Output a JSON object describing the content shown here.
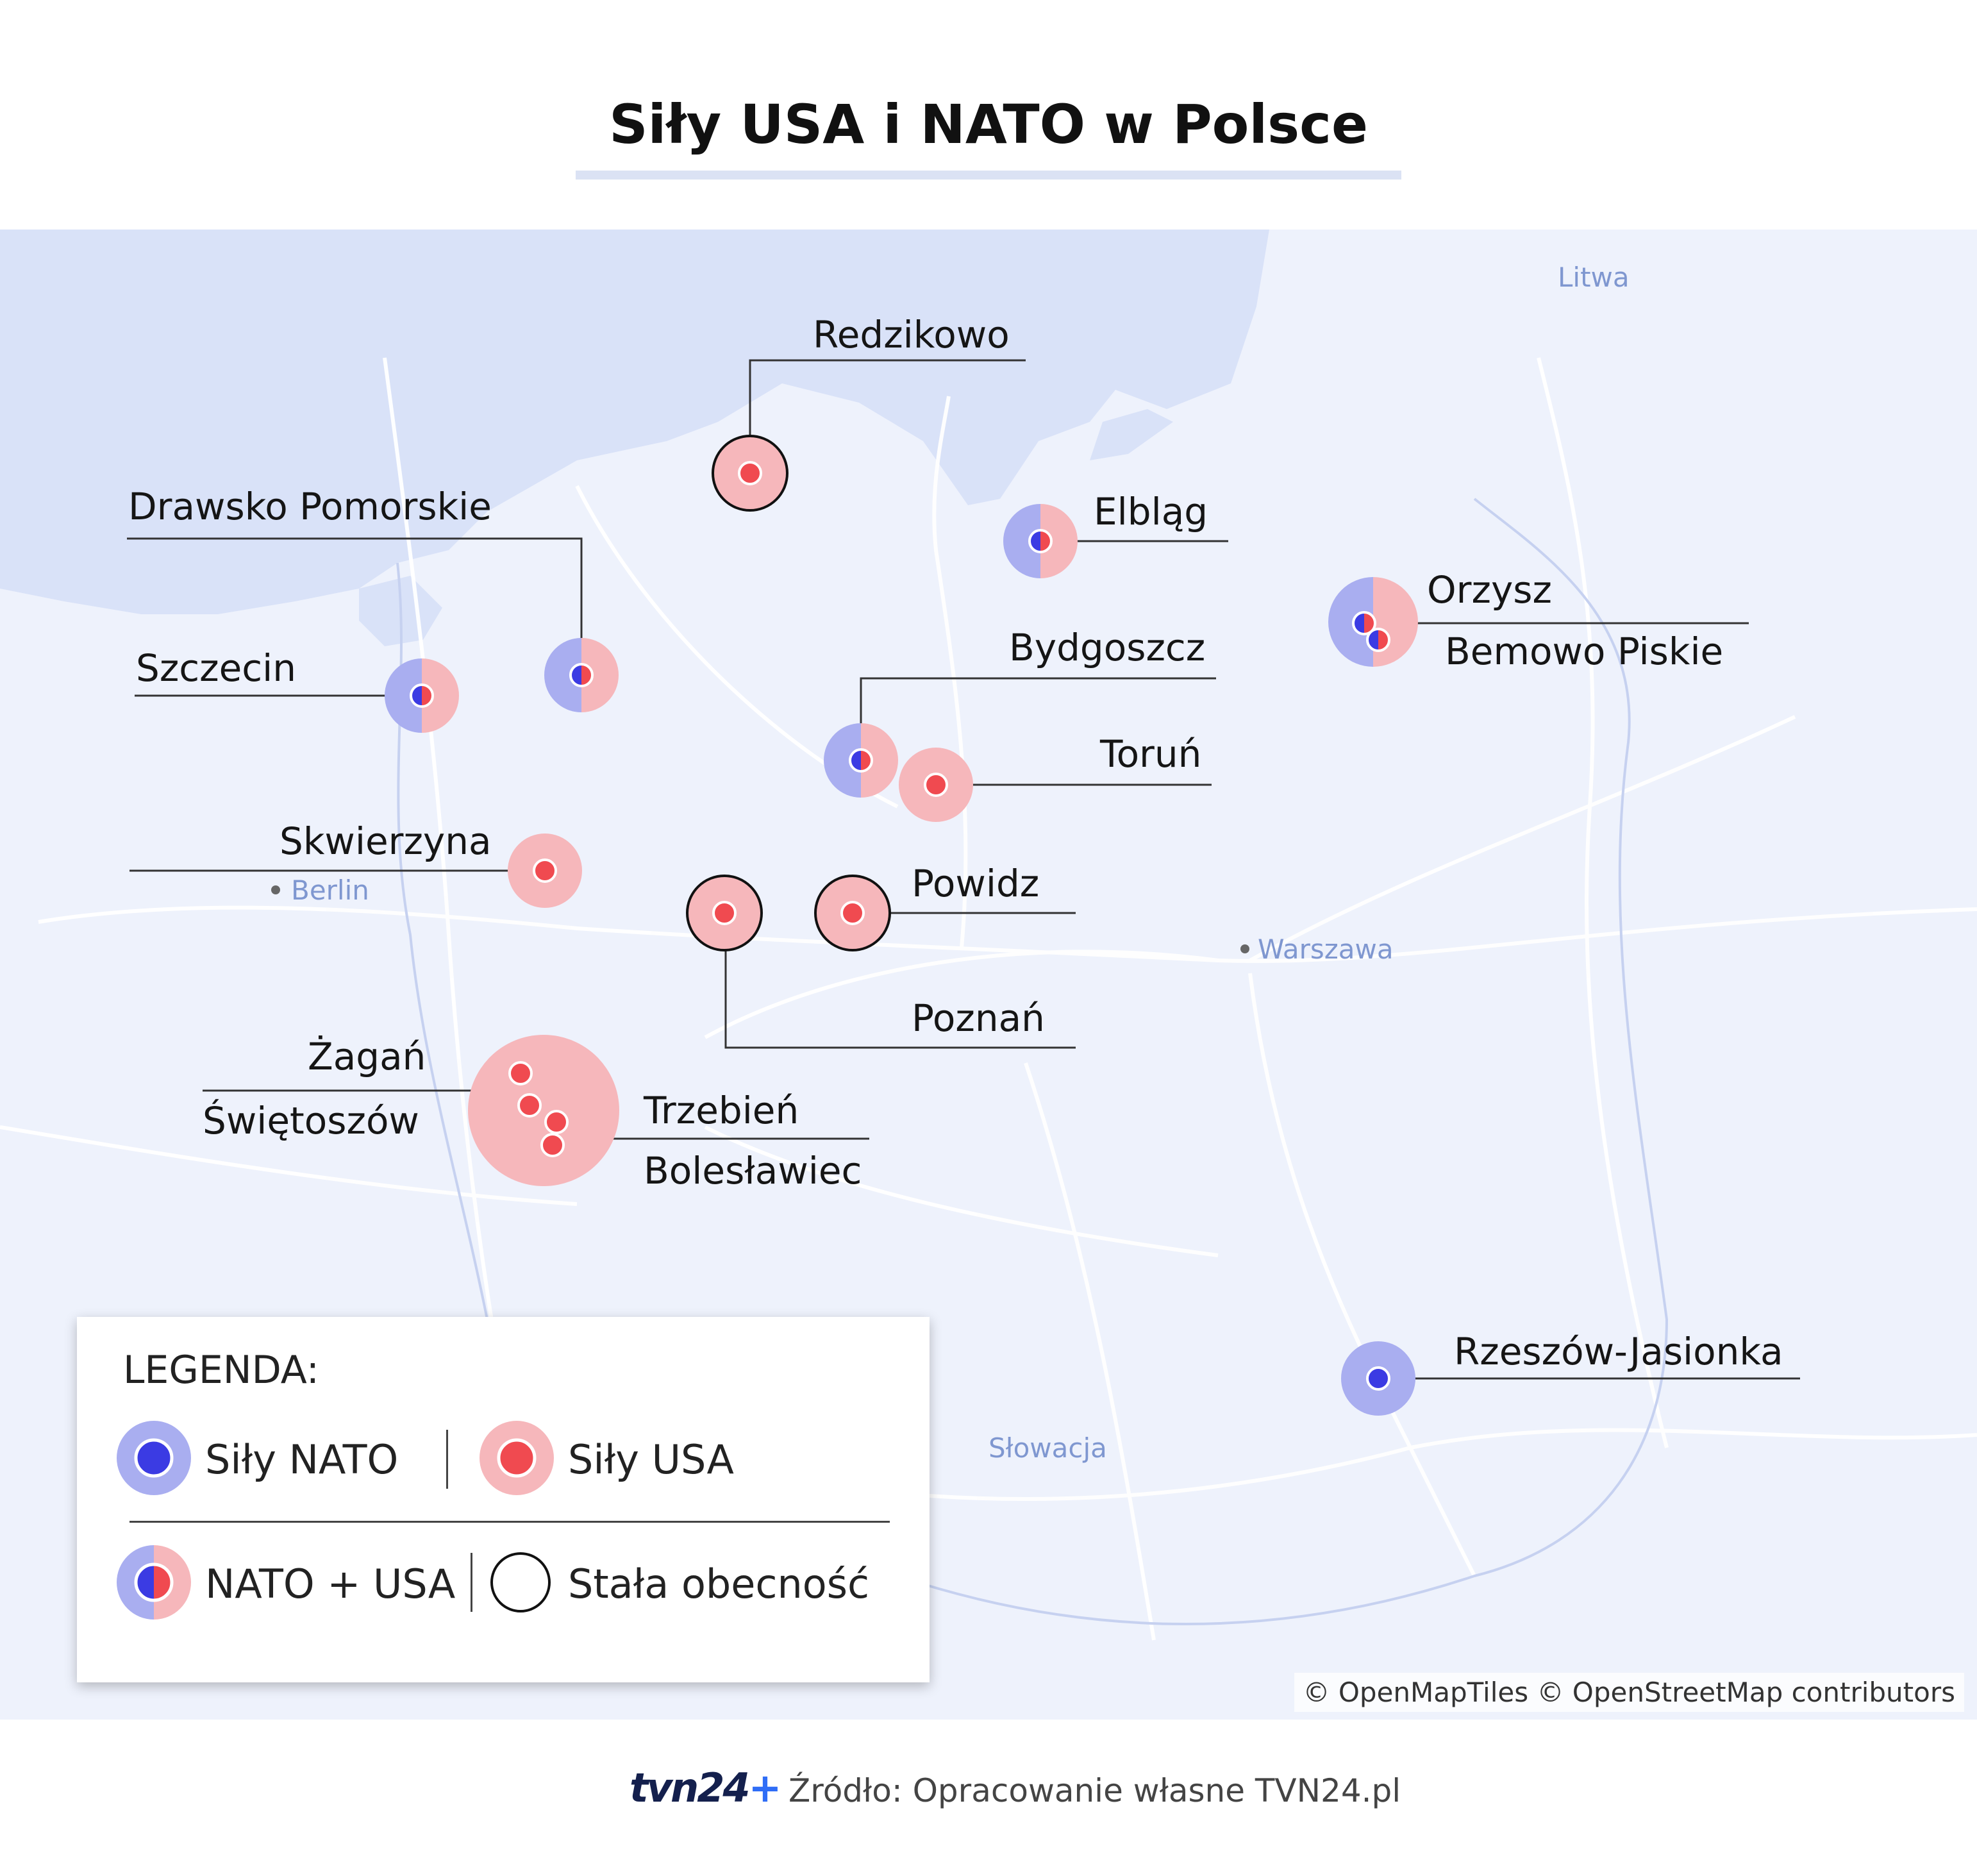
{
  "title": "Siły USA i NATO w Polsce",
  "colors": {
    "nato": "#3b3be3",
    "nato_halo": "#a9aef0",
    "usa": "#f04a50",
    "usa_halo": "#f6b7bb",
    "permanent_ring": "#111111",
    "map_background": "#eef2fc",
    "sea": "#d9e2f8"
  },
  "geo_labels": {
    "lithuania": "Litwa",
    "berlin": "Berlin",
    "warsaw": "Warszawa",
    "slovakia": "Słowacja"
  },
  "sites": [
    {
      "name": "Redzikowo",
      "force": "USA",
      "permanent": true
    },
    {
      "name": "Drawsko Pomorskie",
      "force": "NATO + USA",
      "permanent": false
    },
    {
      "name": "Elbląg",
      "force": "NATO + USA",
      "permanent": false
    },
    {
      "name": "Orzysz",
      "force": "NATO + USA",
      "permanent": false
    },
    {
      "name": "Bemowo Piskie",
      "force": "NATO + USA",
      "permanent": false
    },
    {
      "name": "Szczecin",
      "force": "NATO + USA",
      "permanent": false
    },
    {
      "name": "Bydgoszcz",
      "force": "NATO + USA",
      "permanent": false
    },
    {
      "name": "Toruń",
      "force": "USA",
      "permanent": false
    },
    {
      "name": "Skwierzyna",
      "force": "USA",
      "permanent": false
    },
    {
      "name": "Powidz",
      "force": "USA",
      "permanent": true
    },
    {
      "name": "Poznań",
      "force": "USA",
      "permanent": true
    },
    {
      "name": "Żagań",
      "force": "USA",
      "permanent": false
    },
    {
      "name": "Świętoszów",
      "force": "USA",
      "permanent": false
    },
    {
      "name": "Trzebień",
      "force": "USA",
      "permanent": false
    },
    {
      "name": "Bolesławiec",
      "force": "USA",
      "permanent": false
    },
    {
      "name": "Rzeszów-Jasionka",
      "force": "NATO",
      "permanent": false
    }
  ],
  "legend": {
    "title": "LEGENDA:",
    "nato": "Siły NATO",
    "usa": "Siły USA",
    "both": "NATO + USA",
    "permanent": "Stała obecność"
  },
  "attribution": "© OpenMapTiles © OpenStreetMap contributors",
  "footer": {
    "brand": "tvn24",
    "brand_plus": "+",
    "source": "Źródło: Opracowanie własne TVN24.pl"
  }
}
